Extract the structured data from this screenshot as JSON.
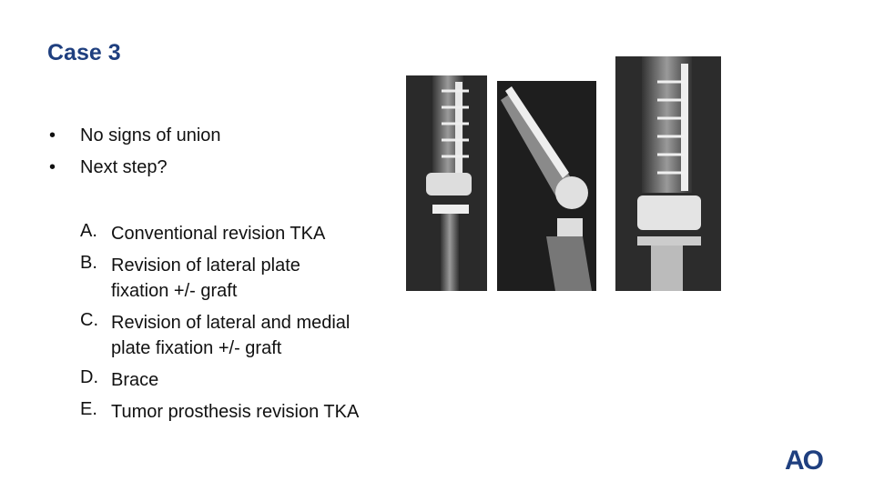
{
  "slide": {
    "title": "Case 3",
    "bullets": [
      "No signs of union",
      "Next step?"
    ],
    "options": [
      {
        "letter": "A.",
        "lines": [
          "Conventional revision TKA"
        ]
      },
      {
        "letter": "B.",
        "lines": [
          "Revision of lateral plate",
          "fixation +/- graft"
        ]
      },
      {
        "letter": "C.",
        "lines": [
          "Revision of lateral and medial",
          "plate fixation +/- graft"
        ]
      },
      {
        "letter": "D.",
        "lines": [
          "Brace"
        ]
      },
      {
        "letter": "E.",
        "lines": [
          "Tumor prosthesis revision TKA"
        ]
      }
    ],
    "logo": "AO"
  }
}
